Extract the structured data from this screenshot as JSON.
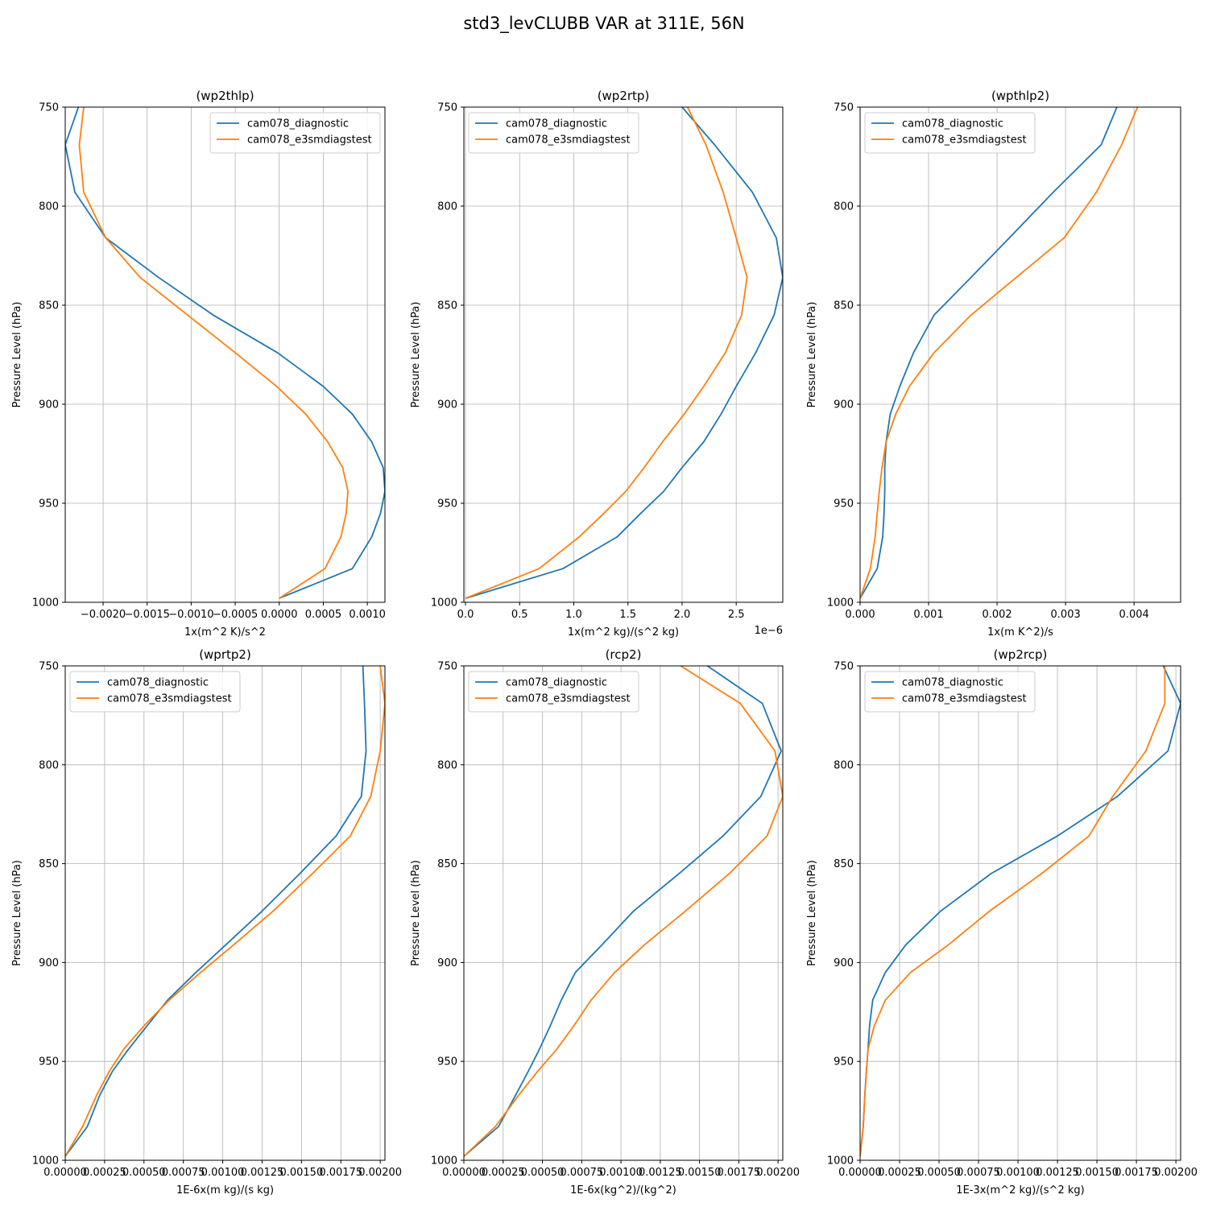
{
  "figure": {
    "suptitle": "std3_levCLUBB VAR at 311E, 56N"
  },
  "colors": {
    "cam078_diagnostic": "#1f77b4",
    "cam078_e3smdiagstest": "#ff7f0e",
    "grid": "#b0b0b0"
  },
  "chart_data": [
    {
      "type": "line",
      "title": "(wp2thlp)",
      "xlabel": "1x(m^2 K)/s^2",
      "ylabel": "Pressure Level (hPa)",
      "xlim": [
        -0.00243,
        0.0012
      ],
      "ylim": [
        1000,
        750
      ],
      "xticks": [
        -0.002,
        -0.0015,
        -0.001,
        -0.0005,
        0.0,
        0.0005,
        0.001
      ],
      "xtick_labels": [
        "−0.0020",
        "−0.0015",
        "−0.0010",
        "−0.0005",
        "0.0000",
        "0.0005",
        "0.0010"
      ],
      "yticks": [
        750,
        800,
        850,
        900,
        950,
        1000
      ],
      "ytick_labels": [
        "750",
        "800",
        "850",
        "900",
        "950",
        "1000"
      ],
      "offset_text": "",
      "grid": true,
      "legend": "upper right",
      "series": [
        {
          "name": "cam078_diagnostic",
          "x": [
            -0.00228,
            -0.00243,
            -0.00232,
            -0.00197,
            -0.00137,
            -0.00075,
            -2e-05,
            0.0005,
            0.00083,
            0.00105,
            0.00118,
            0.0012,
            0.00115,
            0.00105,
            0.00083,
            0.0
          ],
          "y": [
            750,
            769,
            793,
            816,
            836,
            855,
            874,
            891,
            905,
            919,
            932,
            944,
            955,
            967,
            983,
            998
          ]
        },
        {
          "name": "cam078_e3smdiagstest",
          "x": [
            -0.00222,
            -0.00227,
            -0.00222,
            -0.00197,
            -0.00158,
            -0.00104,
            -0.0005,
            -3e-05,
            0.0003,
            0.00055,
            0.00072,
            0.00078,
            0.00076,
            0.0007,
            0.00052,
            0.0
          ],
          "y": [
            750,
            769,
            793,
            816,
            836,
            855,
            874,
            891,
            905,
            919,
            932,
            944,
            955,
            967,
            983,
            998
          ]
        }
      ]
    },
    {
      "type": "line",
      "title": "(wp2rtp)",
      "xlabel": "1x(m^2 kg)/(s^2 kg)",
      "ylabel": "Pressure Level (hPa)",
      "xlim": [
        -1.5e-08,
        2.93e-06
      ],
      "ylim": [
        1000,
        750
      ],
      "xticks": [
        0.0,
        5e-07,
        1e-06,
        1.5e-06,
        2e-06,
        2.5e-06
      ],
      "xtick_labels": [
        "0.0",
        "0.5",
        "1.0",
        "1.5",
        "2.0",
        "2.5"
      ],
      "yticks": [
        750,
        800,
        850,
        900,
        950,
        1000
      ],
      "ytick_labels": [
        "750",
        "800",
        "850",
        "900",
        "950",
        "1000"
      ],
      "offset_text": "1e−6",
      "grid": true,
      "legend": "upper left",
      "series": [
        {
          "name": "cam078_diagnostic",
          "x": [
            2e-06,
            2.3e-06,
            2.65e-06,
            2.87e-06,
            2.93e-06,
            2.85e-06,
            2.68e-06,
            2.5e-06,
            2.36e-06,
            2.2e-06,
            2e-06,
            1.83e-06,
            1.62e-06,
            1.4e-06,
            9e-07,
            0.0
          ],
          "y": [
            750,
            769,
            793,
            816,
            836,
            855,
            874,
            891,
            905,
            919,
            932,
            944,
            955,
            967,
            983,
            998
          ]
        },
        {
          "name": "cam078_e3smdiagstest",
          "x": [
            2.05e-06,
            2.22e-06,
            2.38e-06,
            2.5e-06,
            2.6e-06,
            2.55e-06,
            2.4e-06,
            2.2e-06,
            2.02e-06,
            1.82e-06,
            1.65e-06,
            1.48e-06,
            1.28e-06,
            1.05e-06,
            6.8e-07,
            0.0
          ],
          "y": [
            750,
            769,
            793,
            816,
            836,
            855,
            874,
            891,
            905,
            919,
            932,
            944,
            955,
            967,
            983,
            998
          ]
        }
      ]
    },
    {
      "type": "line",
      "title": "(wpthlp2)",
      "xlabel": "1x(m K^2)/s",
      "ylabel": "Pressure Level (hPa)",
      "xlim": [
        0.0,
        0.00468
      ],
      "ylim": [
        1000,
        750
      ],
      "xticks": [
        0.0,
        0.001,
        0.002,
        0.003,
        0.004
      ],
      "xtick_labels": [
        "0.000",
        "0.001",
        "0.002",
        "0.003",
        "0.004"
      ],
      "yticks": [
        750,
        800,
        850,
        900,
        950,
        1000
      ],
      "ytick_labels": [
        "750",
        "800",
        "850",
        "900",
        "950",
        "1000"
      ],
      "offset_text": "",
      "grid": true,
      "legend": "upper left",
      "series": [
        {
          "name": "cam078_diagnostic",
          "x": [
            0.00375,
            0.00352,
            0.00282,
            0.00218,
            0.00162,
            0.00108,
            0.00078,
            0.00058,
            0.00044,
            0.00038,
            0.00036,
            0.00036,
            0.00035,
            0.00033,
            0.00025,
            0.0
          ],
          "y": [
            750,
            769,
            793,
            816,
            836,
            855,
            874,
            891,
            905,
            919,
            932,
            944,
            955,
            967,
            983,
            998
          ]
        },
        {
          "name": "cam078_e3smdiagstest",
          "x": [
            0.00405,
            0.00382,
            0.00345,
            0.00298,
            0.00228,
            0.00162,
            0.00108,
            0.00072,
            0.00052,
            0.00038,
            0.00032,
            0.00028,
            0.00025,
            0.00022,
            0.00015,
            0.0
          ],
          "y": [
            750,
            769,
            793,
            816,
            836,
            855,
            874,
            891,
            905,
            919,
            932,
            944,
            955,
            967,
            983,
            998
          ]
        }
      ]
    },
    {
      "type": "line",
      "title": "(wprtp2)",
      "xlabel": "1E-6x(m kg)/(s kg)",
      "ylabel": "Pressure Level (hPa)",
      "xlim": [
        0.0,
        0.00203
      ],
      "ylim": [
        1000,
        750
      ],
      "xticks": [
        0.0,
        0.00025,
        0.0005,
        0.00075,
        0.001,
        0.00125,
        0.0015,
        0.00175,
        0.002
      ],
      "xtick_labels": [
        "0.00000",
        "0.00025",
        "0.00050",
        "0.00075",
        "0.00100",
        "0.00125",
        "0.00150",
        "0.00175",
        "0.00200"
      ],
      "yticks": [
        750,
        800,
        850,
        900,
        950,
        1000
      ],
      "ytick_labels": [
        "750",
        "800",
        "850",
        "900",
        "950",
        "1000"
      ],
      "offset_text": "",
      "grid": true,
      "legend": "upper left",
      "series": [
        {
          "name": "cam078_diagnostic",
          "x": [
            0.00189,
            0.0019,
            0.00191,
            0.00188,
            0.00172,
            0.00149,
            0.00125,
            0.00102,
            0.00083,
            0.00065,
            0.00052,
            0.0004,
            0.0003,
            0.00022,
            0.00014,
            0.0
          ],
          "y": [
            750,
            769,
            793,
            816,
            836,
            855,
            874,
            891,
            905,
            919,
            932,
            944,
            955,
            967,
            983,
            998
          ]
        },
        {
          "name": "cam078_e3smdiagstest",
          "x": [
            0.002,
            0.00203,
            0.002,
            0.00194,
            0.00181,
            0.00157,
            0.00132,
            0.00107,
            0.00086,
            0.00066,
            0.0005,
            0.00037,
            0.00028,
            0.0002,
            0.00011,
            0.0
          ],
          "y": [
            750,
            769,
            793,
            816,
            836,
            855,
            874,
            891,
            905,
            919,
            932,
            944,
            955,
            967,
            983,
            998
          ]
        }
      ]
    },
    {
      "type": "line",
      "title": "(rcp2)",
      "xlabel": "1E-6x(kg^2)/(kg^2)",
      "ylabel": "Pressure Level (hPa)",
      "xlim": [
        0.0,
        0.00203
      ],
      "ylim": [
        1000,
        750
      ],
      "xticks": [
        0.0,
        0.00025,
        0.0005,
        0.00075,
        0.001,
        0.00125,
        0.0015,
        0.00175,
        0.002
      ],
      "xtick_labels": [
        "0.00000",
        "0.00025",
        "0.00050",
        "0.00075",
        "0.00100",
        "0.00125",
        "0.00150",
        "0.00175",
        "0.00200"
      ],
      "yticks": [
        750,
        800,
        850,
        900,
        950,
        1000
      ],
      "ytick_labels": [
        "750",
        "800",
        "850",
        "900",
        "950",
        "1000"
      ],
      "offset_text": "",
      "grid": true,
      "legend": "upper left",
      "series": [
        {
          "name": "cam078_diagnostic",
          "x": [
            0.00155,
            0.0019,
            0.00202,
            0.00189,
            0.00165,
            0.00137,
            0.00108,
            0.00088,
            0.00071,
            0.00062,
            0.00055,
            0.00048,
            0.00041,
            0.00033,
            0.00022,
            0.0
          ],
          "y": [
            750,
            769,
            793,
            816,
            836,
            855,
            874,
            891,
            905,
            919,
            932,
            944,
            955,
            967,
            983,
            998
          ]
        },
        {
          "name": "cam078_e3smdiagstest",
          "x": [
            0.00138,
            0.00176,
            0.00198,
            0.00203,
            0.00193,
            0.00169,
            0.00141,
            0.00115,
            0.00096,
            0.00081,
            0.0007,
            0.00059,
            0.00047,
            0.00035,
            0.0002,
            0.0
          ],
          "y": [
            750,
            769,
            793,
            816,
            836,
            855,
            874,
            891,
            905,
            919,
            932,
            944,
            955,
            967,
            983,
            998
          ]
        }
      ]
    },
    {
      "type": "line",
      "title": "(wp2rcp)",
      "xlabel": "1E-3x(m^2 kg)/(s^2 kg)",
      "ylabel": "Pressure Level (hPa)",
      "xlim": [
        0.0,
        0.00203
      ],
      "ylim": [
        1000,
        750
      ],
      "xticks": [
        0.0,
        0.00025,
        0.0005,
        0.00075,
        0.001,
        0.00125,
        0.0015,
        0.00175,
        0.002
      ],
      "xtick_labels": [
        "0.00000",
        "0.00025",
        "0.00050",
        "0.00075",
        "0.00100",
        "0.00125",
        "0.00150",
        "0.00175",
        "0.00200"
      ],
      "yticks": [
        750,
        800,
        850,
        900,
        950,
        1000
      ],
      "ytick_labels": [
        "750",
        "800",
        "850",
        "900",
        "950",
        "1000"
      ],
      "offset_text": "",
      "grid": true,
      "legend": "upper left",
      "series": [
        {
          "name": "cam078_diagnostic",
          "x": [
            0.00192,
            0.00203,
            0.00195,
            0.00163,
            0.00125,
            0.00083,
            0.00051,
            0.00029,
            0.00016,
            8e-05,
            6e-05,
            5e-05,
            4e-05,
            3e-05,
            2e-05,
            0.0
          ],
          "y": [
            750,
            769,
            793,
            816,
            836,
            855,
            874,
            891,
            905,
            919,
            932,
            944,
            955,
            967,
            983,
            998
          ]
        },
        {
          "name": "cam078_e3smdiagstest",
          "x": [
            0.00193,
            0.00193,
            0.00181,
            0.0016,
            0.00145,
            0.00115,
            0.00082,
            0.00056,
            0.00032,
            0.00016,
            9e-05,
            5e-05,
            4e-05,
            3e-05,
            2e-05,
            0.0
          ],
          "y": [
            750,
            769,
            793,
            816,
            836,
            855,
            874,
            891,
            905,
            919,
            932,
            944,
            955,
            967,
            983,
            998
          ]
        }
      ]
    }
  ]
}
